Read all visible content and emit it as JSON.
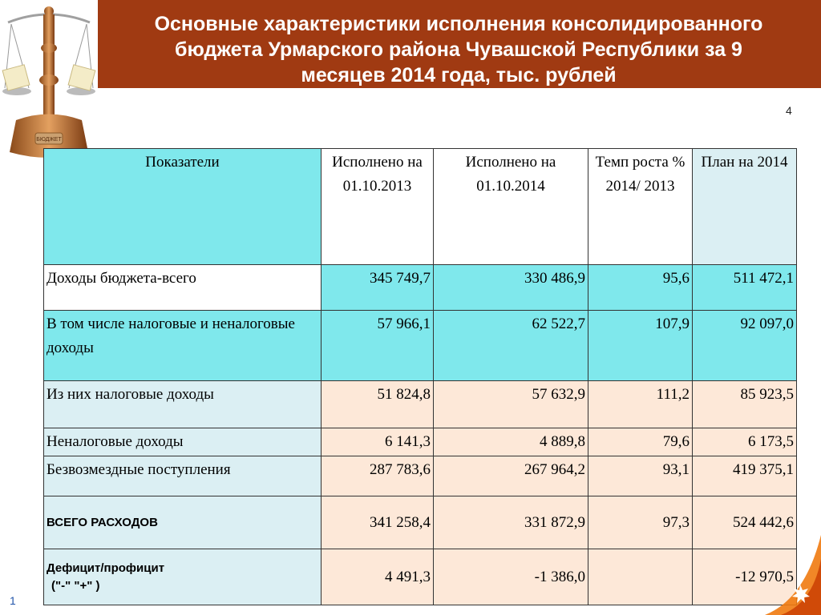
{
  "header": {
    "title_lines": [
      "Основные характеристики исполнения консолидированного",
      "бюджета Урмарского района Чувашской Республики  за 9",
      "месяцев  2014 года, тыс. рублей"
    ]
  },
  "logo": {
    "text": "БЮДЖЕТ"
  },
  "slide_number": "4",
  "page_number": "1",
  "table": {
    "headers": [
      "Показатели",
      "Исполнено на 01.10.2013",
      "Исполнено на 01.10.2014",
      "Темп роста % 2014/ 2013",
      "План на 2014"
    ],
    "rows": [
      {
        "label": "Доходы бюджета-всего",
        "values": [
          "345 749,7",
          "330 486,9",
          "95,6",
          "511 472,1"
        ]
      },
      {
        "label": "В том числе налоговые и неналоговые доходы",
        "values": [
          "57 966,1",
          "62 522,7",
          "107,9",
          "92 097,0"
        ]
      },
      {
        "label": "Из них налоговые доходы",
        "values": [
          "51 824,8",
          "57 632,9",
          "111,2",
          "85 923,5"
        ]
      },
      {
        "label": "Неналоговые доходы",
        "values": [
          "6 141,3",
          "4 889,8",
          "79,6",
          "6 173,5"
        ]
      },
      {
        "label": "Безвозмездные поступления",
        "values": [
          "287 783,6",
          "267 964,2",
          "93,1",
          "419 375,1"
        ]
      },
      {
        "label": "ВСЕГО РАСХОДОВ",
        "values": [
          "341 258,4",
          "331 872,9",
          "97,3",
          "524 442,6"
        ]
      },
      {
        "label": "Дефицит/профицит",
        "label2": "(\"-\" \"+\" )",
        "values": [
          "4 491,3",
          "-1 386,0",
          "",
          "-12 970,5"
        ]
      }
    ]
  }
}
